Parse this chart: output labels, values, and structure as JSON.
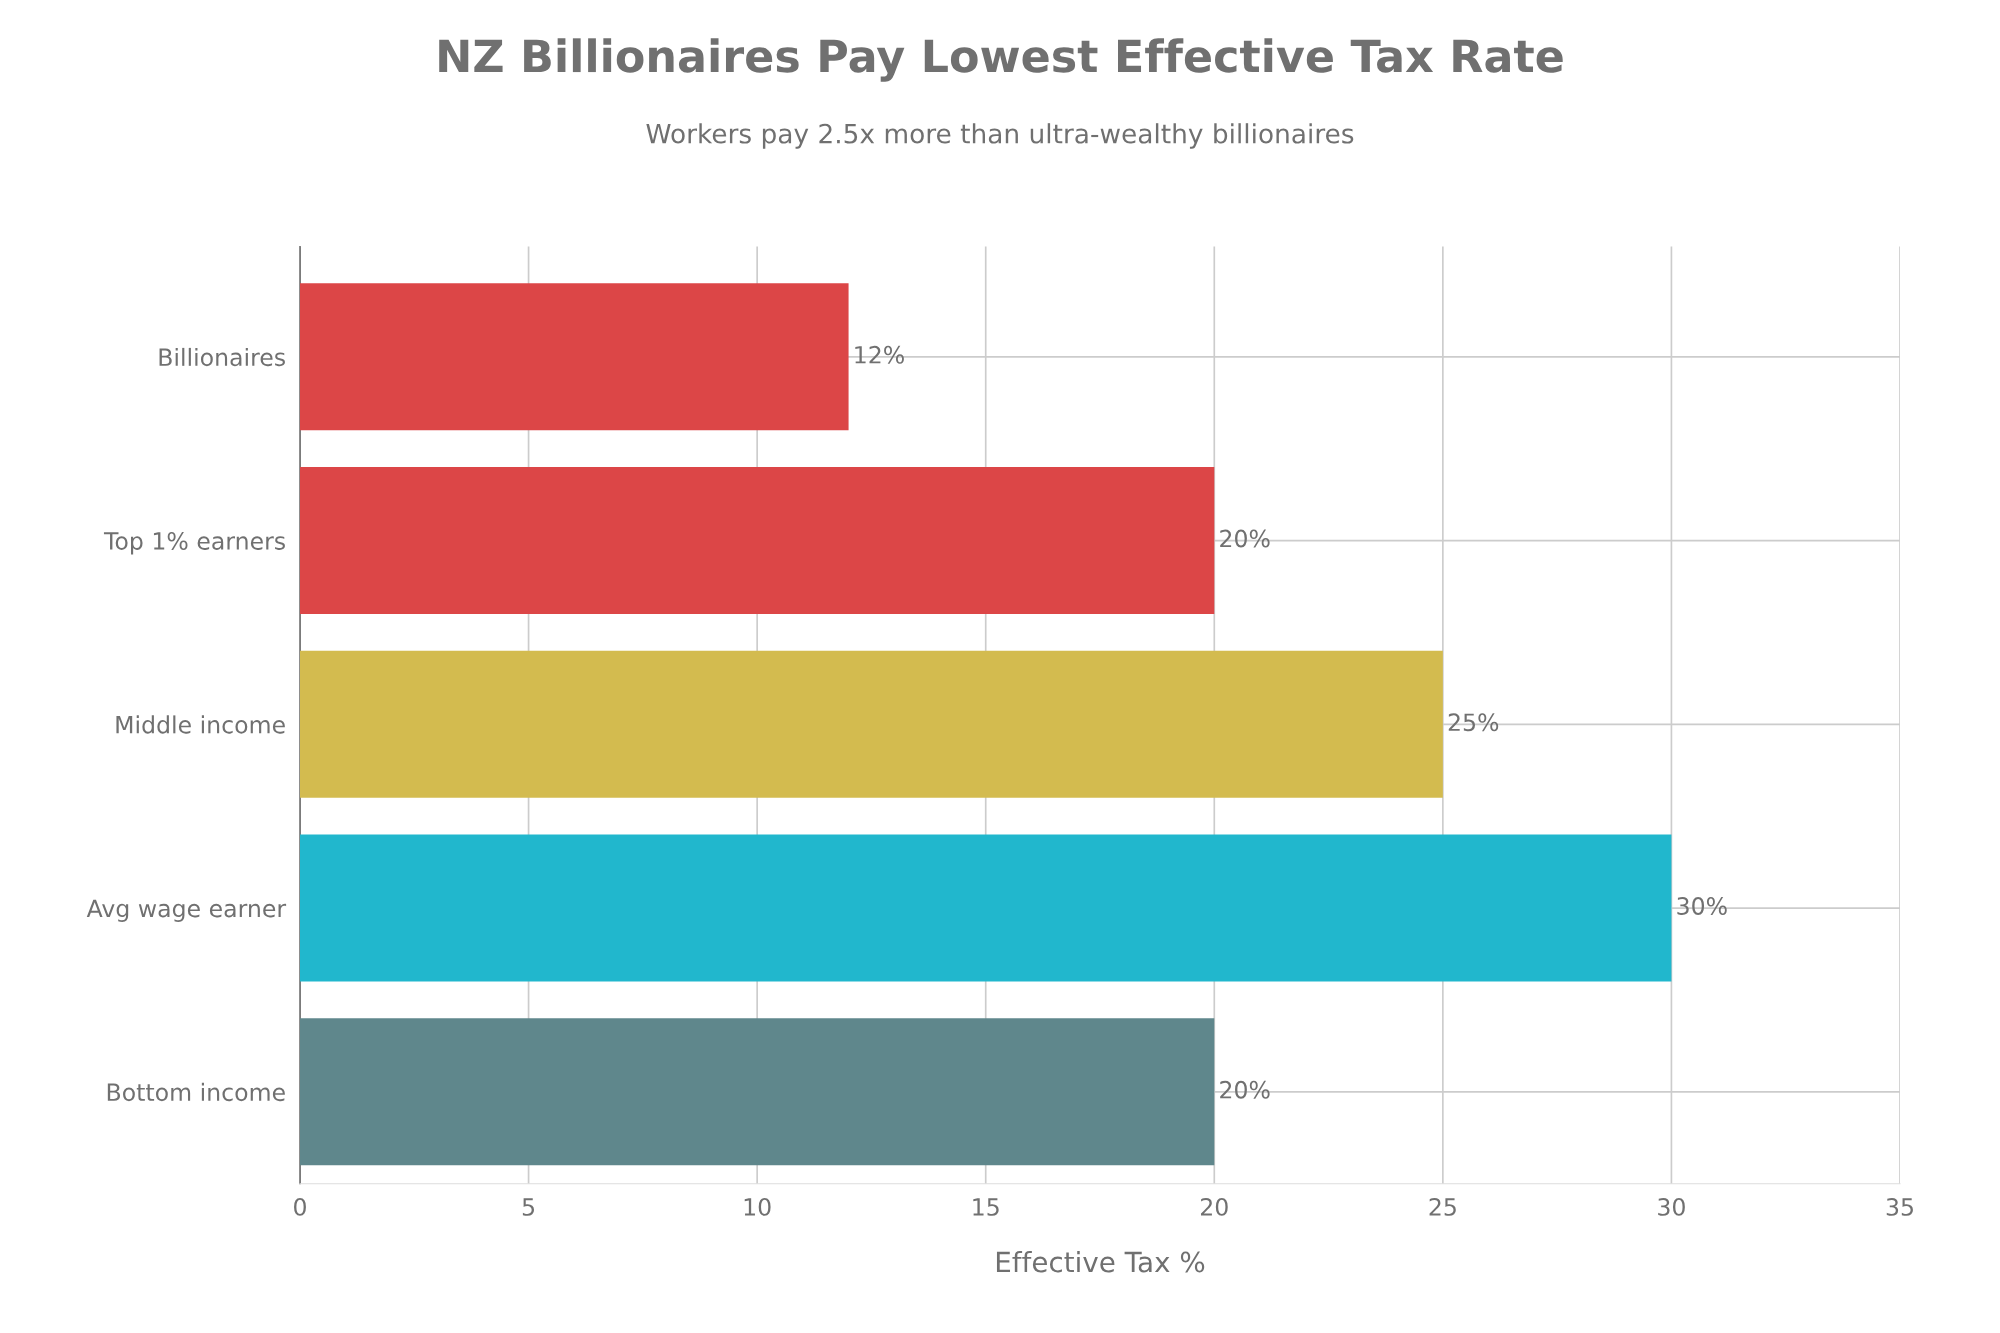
{
  "chart_data": {
    "type": "bar",
    "orientation": "horizontal",
    "title": "NZ Billionaires Pay Lowest Effective Tax Rate",
    "subtitle": "Workers pay 2.5x more than ultra-wealthy billionaires",
    "xlabel": "Effective Tax %",
    "categories": [
      "Billionaires",
      "Top 1% earners",
      "Middle income",
      "Avg wage earner",
      "Bottom income"
    ],
    "values": [
      12,
      20,
      25,
      30,
      20
    ],
    "colors": [
      "#dc4647",
      "#dc4647",
      "#d3bb4f",
      "#21b7cd",
      "#5f878c"
    ],
    "value_labels": [
      "12%",
      "20%",
      "25%",
      "30%",
      "20%"
    ],
    "xlim": [
      0,
      35
    ],
    "xticks": [
      0,
      5,
      10,
      15,
      20,
      25,
      30,
      35
    ],
    "grid": true,
    "legend": false
  }
}
